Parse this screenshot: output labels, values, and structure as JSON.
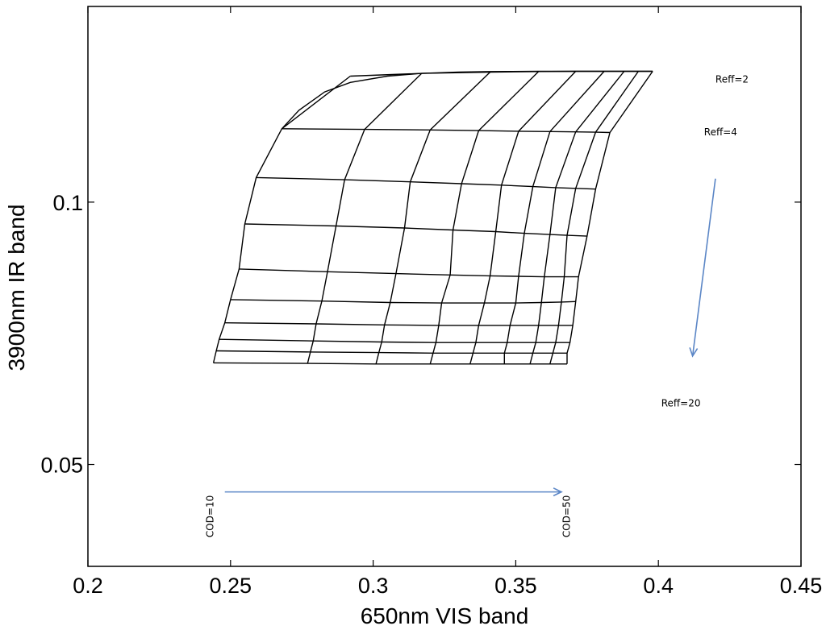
{
  "chart_data": {
    "type": "line",
    "title": "",
    "xlabel": "650nm VIS band",
    "ylabel": "3900nm IR  band",
    "xlim": [
      0.2,
      0.45
    ],
    "ylim": [
      0.0382,
      0.1677
    ],
    "y_scale": "log",
    "xticks": [
      0.2,
      0.25,
      0.3,
      0.35,
      0.4,
      0.45
    ],
    "xtick_labels": [
      "0.2",
      "0.25",
      "0.3",
      "0.35",
      "0.4",
      "0.45"
    ],
    "yticks": [
      0.05,
      0.1
    ],
    "ytick_labels": [
      "0.05",
      "0.1"
    ],
    "grid": false,
    "colors": {
      "mesh": "#000000",
      "arrow": "#5b86c6"
    },
    "mesh": {
      "description_rows": "iso-Reff curves",
      "rows": [
        {
          "x": [
            0.292,
            0.317,
            0.341,
            0.358,
            0.371,
            0.381,
            0.388,
            0.393,
            0.398
          ],
          "y": [
            0.1395,
            0.1405,
            0.141,
            0.1412,
            0.1413,
            0.1413,
            0.1413,
            0.1413,
            0.1413
          ]
        },
        {
          "x": [
            0.268,
            0.297,
            0.32,
            0.337,
            0.351,
            0.362,
            0.371,
            0.378,
            0.383
          ],
          "y": [
            0.1214,
            0.1212,
            0.121,
            0.1208,
            0.1206,
            0.1205,
            0.1204,
            0.1203,
            0.1202
          ]
        },
        {
          "x": [
            0.259,
            0.29,
            0.313,
            0.331,
            0.345,
            0.356,
            0.364,
            0.371,
            0.378
          ],
          "y": [
            0.1067,
            0.1061,
            0.1055,
            0.105,
            0.1046,
            0.1042,
            0.1039,
            0.1037,
            0.1035
          ]
        },
        {
          "x": [
            0.255,
            0.287,
            0.311,
            0.328,
            0.343,
            0.353,
            0.362,
            0.368,
            0.375
          ],
          "y": [
            0.0944,
            0.0939,
            0.0934,
            0.0929,
            0.0925,
            0.0921,
            0.0918,
            0.0916,
            0.0914
          ]
        },
        {
          "x": [
            0.253,
            0.284,
            0.308,
            0.327,
            0.341,
            0.351,
            0.36,
            0.367,
            0.372
          ],
          "y": [
            0.0838,
            0.0832,
            0.0828,
            0.0825,
            0.0823,
            0.0822,
            0.0821,
            0.0821,
            0.0821
          ]
        },
        {
          "x": [
            0.25,
            0.282,
            0.306,
            0.324,
            0.339,
            0.35,
            0.359,
            0.366,
            0.371
          ],
          "y": [
            0.0773,
            0.077,
            0.0767,
            0.0766,
            0.0766,
            0.0766,
            0.0767,
            0.0768,
            0.0769
          ]
        },
        {
          "x": [
            0.248,
            0.28,
            0.304,
            0.323,
            0.337,
            0.348,
            0.358,
            0.365,
            0.37
          ],
          "y": [
            0.0727,
            0.0725,
            0.0723,
            0.0722,
            0.0722,
            0.0722,
            0.0722,
            0.0722,
            0.0722
          ]
        },
        {
          "x": [
            0.246,
            0.279,
            0.303,
            0.322,
            0.336,
            0.347,
            0.357,
            0.364,
            0.369
          ],
          "y": [
            0.0696,
            0.0693,
            0.0691,
            0.069,
            0.069,
            0.069,
            0.069,
            0.069,
            0.069
          ]
        },
        {
          "x": [
            0.245,
            0.278,
            0.302,
            0.321,
            0.335,
            0.346,
            0.356,
            0.363,
            0.368
          ],
          "y": [
            0.0675,
            0.0673,
            0.0672,
            0.0671,
            0.0671,
            0.0671,
            0.0671,
            0.0671,
            0.0671
          ]
        },
        {
          "x": [
            0.244,
            0.277,
            0.301,
            0.32,
            0.334,
            0.346,
            0.355,
            0.362,
            0.368
          ],
          "y": [
            0.0654,
            0.0653,
            0.0652,
            0.0652,
            0.0652,
            0.0652,
            0.0652,
            0.0652,
            0.0652
          ]
        }
      ],
      "top_curve": {
        "x": [
          0.268,
          0.274,
          0.283,
          0.292,
          0.305,
          0.317,
          0.33,
          0.341,
          0.358,
          0.371,
          0.398
        ],
        "y": [
          0.1214,
          0.1275,
          0.1338,
          0.1372,
          0.1395,
          0.1405,
          0.141,
          0.1412,
          0.1413,
          0.1413,
          0.1413
        ]
      }
    },
    "annotations": [
      {
        "text": "Reff=2",
        "x": 0.42,
        "y": 0.1372
      },
      {
        "text": "Reff=4",
        "x": 0.416,
        "y": 0.1193
      },
      {
        "text": "Reff=20",
        "x": 0.401,
        "y": 0.0583
      },
      {
        "text": "COD=10",
        "x": 0.244,
        "y": 0.0436,
        "rotation": -90
      },
      {
        "text": "COD=50",
        "x": 0.369,
        "y": 0.0436,
        "rotation": -90
      }
    ],
    "arrows": [
      {
        "from": [
          0.248,
          0.0465
        ],
        "to": [
          0.366,
          0.0465
        ]
      },
      {
        "from": [
          0.42,
          0.1064
        ],
        "to": [
          0.412,
          0.0666
        ]
      }
    ]
  }
}
